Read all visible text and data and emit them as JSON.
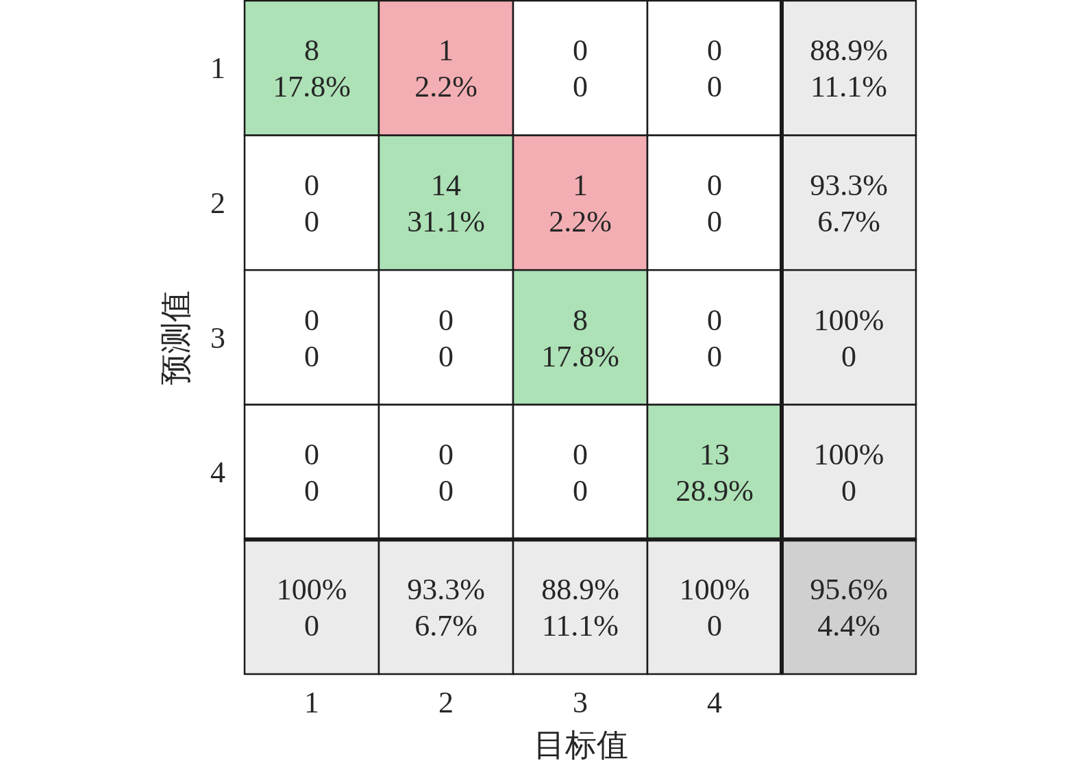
{
  "chart_data": {
    "type": "heatmap",
    "xlabel": "目标值",
    "ylabel": "预测值",
    "categories": [
      "1",
      "2",
      "3",
      "4",
      null
    ],
    "y_categories": [
      "1",
      "2",
      "3",
      "4",
      null
    ],
    "cells": [
      [
        8,
        1,
        0,
        0,
        88.9
      ],
      [
        0,
        14,
        1,
        0,
        93.3
      ],
      [
        0,
        0,
        8,
        0,
        100
      ],
      [
        0,
        0,
        0,
        13,
        100
      ],
      [
        100,
        93.3,
        88.9,
        100,
        95.6
      ]
    ],
    "cell_labels": [
      [
        "8",
        "1",
        "0",
        "0",
        "88.9%"
      ],
      [
        "0",
        "14",
        "1",
        "0",
        "93.3%"
      ],
      [
        "0",
        "0",
        "8",
        "0",
        "100%"
      ],
      [
        "0",
        "0",
        "0",
        "13",
        "100%"
      ],
      [
        "100%",
        "93.3%",
        "88.9%",
        "100%",
        "95.6%"
      ]
    ],
    "annotations": [
      "17.8%",
      "2.2%",
      "0",
      "0",
      "11.1%",
      "0",
      "31.1%",
      "2.2%",
      "0",
      "6.7%",
      "0",
      "0",
      "17.8%",
      "0",
      "0",
      "0",
      "0",
      "0",
      "28.9%",
      "0",
      "0",
      "6.7%",
      "11.1%",
      "0",
      "4.4%"
    ],
    "colors": [
      [
        "#ade1b6",
        "#f3aeb3",
        "#ffffff",
        "#ffffff",
        "#ebebeb"
      ],
      [
        "#ffffff",
        "#ade1b6",
        "#f3aeb3",
        "#ffffff",
        "#ebebeb"
      ],
      [
        "#ffffff",
        "#ffffff",
        "#ade1b6",
        "#ffffff",
        "#ebebeb"
      ],
      [
        "#ffffff",
        "#ffffff",
        "#ffffff",
        "#ade1b6",
        "#ebebeb"
      ],
      [
        "#ebebeb",
        "#ebebeb",
        "#ebebeb",
        "#ebebeb",
        "#d0d0d0"
      ]
    ]
  }
}
